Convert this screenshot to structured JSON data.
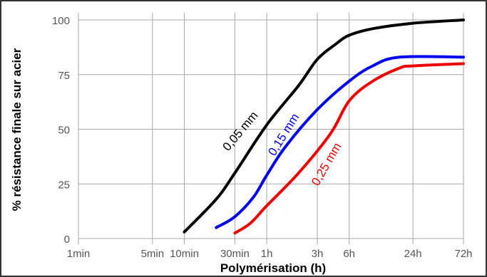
{
  "chart_data": {
    "type": "line",
    "title": "",
    "xlabel": "Polymérisation (h)",
    "ylabel": "% résistance finale sur acier",
    "x_scale": "log",
    "x_unit": "min",
    "xlim": [
      1,
      4320
    ],
    "ylim": [
      0,
      100
    ],
    "x_ticks": [
      {
        "label": "1min",
        "value": 1
      },
      {
        "label": "5min",
        "value": 5
      },
      {
        "label": "10min",
        "value": 10
      },
      {
        "label": "30min",
        "value": 30
      },
      {
        "label": "1h",
        "value": 60
      },
      {
        "label": "3h",
        "value": 180
      },
      {
        "label": "6h",
        "value": 360
      },
      {
        "label": "24h",
        "value": 1440
      },
      {
        "label": "72h",
        "value": 4320
      }
    ],
    "y_ticks": [
      0,
      25,
      50,
      75,
      100
    ],
    "grid": true,
    "series": [
      {
        "name": "0,05 mm",
        "color": "#000000",
        "points": [
          [
            10,
            3
          ],
          [
            20,
            18
          ],
          [
            30,
            30
          ],
          [
            60,
            52
          ],
          [
            120,
            70
          ],
          [
            180,
            82
          ],
          [
            270,
            89
          ],
          [
            360,
            93
          ],
          [
            600,
            96
          ],
          [
            1440,
            98.5
          ],
          [
            4320,
            100
          ]
        ]
      },
      {
        "name": "0,15 mm",
        "color": "#0000ee",
        "points": [
          [
            20,
            5
          ],
          [
            30,
            10
          ],
          [
            45,
            19
          ],
          [
            60,
            29
          ],
          [
            90,
            42
          ],
          [
            180,
            59
          ],
          [
            360,
            72
          ],
          [
            600,
            79
          ],
          [
            1080,
            83
          ],
          [
            4320,
            83
          ]
        ]
      },
      {
        "name": "0,25 mm",
        "color": "#ee0000",
        "points": [
          [
            30,
            2.5
          ],
          [
            42,
            7
          ],
          [
            60,
            15
          ],
          [
            120,
            30
          ],
          [
            240,
            48
          ],
          [
            360,
            63
          ],
          [
            600,
            72
          ],
          [
            1080,
            78
          ],
          [
            1440,
            79
          ],
          [
            4320,
            80
          ]
        ]
      }
    ]
  }
}
